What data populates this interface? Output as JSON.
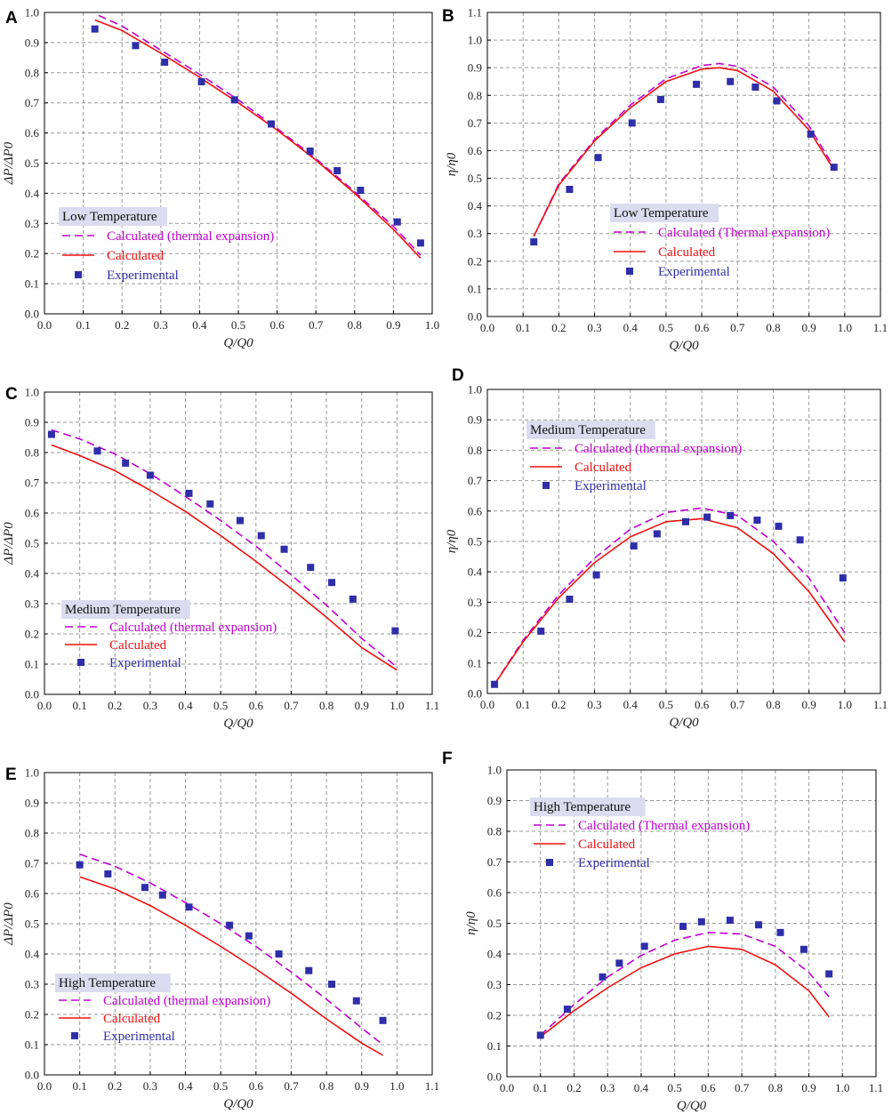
{
  "colors": {
    "thermal": "#c000d0",
    "calculated": "#ee1111",
    "experimental": "#2e2eaa",
    "legend_title_bg": "#dcdcf0",
    "grid": "#999999"
  },
  "chart_data": [
    {
      "panel": "A",
      "type": "line",
      "xlabel": "Q/Q0",
      "ylabel": "ΔP/ΔP0",
      "xlim": [
        0,
        1.0
      ],
      "ylim": [
        0,
        1.0
      ],
      "xticks": [
        "0.0",
        "0.1",
        "0.2",
        "0.3",
        "0.4",
        "0.5",
        "0.6",
        "0.7",
        "0.8",
        "0.9",
        "1.0"
      ],
      "yticks": [
        "0.0",
        "0.1",
        "0.2",
        "0.3",
        "0.4",
        "0.5",
        "0.6",
        "0.7",
        "0.8",
        "0.9",
        "1.0"
      ],
      "legend": {
        "title": "Low Temperature",
        "thermal": "Calculated (thermal expansion)",
        "calculated": "Calculated",
        "experimental": "Experimental"
      },
      "series": [
        {
          "key": "thermal",
          "kind": "dashed",
          "x": [
            0.14,
            0.2,
            0.3,
            0.4,
            0.5,
            0.6,
            0.7,
            0.8,
            0.9,
            0.97
          ],
          "y": [
            0.99,
            0.955,
            0.875,
            0.795,
            0.71,
            0.615,
            0.515,
            0.405,
            0.29,
            0.195
          ]
        },
        {
          "key": "calculated",
          "kind": "solid",
          "x": [
            0.13,
            0.2,
            0.3,
            0.4,
            0.5,
            0.6,
            0.7,
            0.8,
            0.9,
            0.97
          ],
          "y": [
            0.975,
            0.94,
            0.865,
            0.785,
            0.7,
            0.61,
            0.51,
            0.4,
            0.28,
            0.185
          ]
        },
        {
          "key": "experimental",
          "kind": "points",
          "x": [
            0.13,
            0.235,
            0.31,
            0.405,
            0.49,
            0.585,
            0.685,
            0.755,
            0.815,
            0.91,
            0.97
          ],
          "y": [
            0.945,
            0.89,
            0.835,
            0.77,
            0.71,
            0.63,
            0.54,
            0.475,
            0.41,
            0.305,
            0.235
          ]
        }
      ]
    },
    {
      "panel": "B",
      "type": "line",
      "xlabel": "Q/Q0",
      "ylabel": "η/η0",
      "xlim": [
        0,
        1.1
      ],
      "ylim": [
        0,
        1.1
      ],
      "xticks": [
        "0.0",
        "0.1",
        "0.2",
        "0.3",
        "0.4",
        "0.5",
        "0.6",
        "0.7",
        "0.8",
        "0.9",
        "1.0",
        "1.1"
      ],
      "yticks": [
        "0.0",
        "0.1",
        "0.2",
        "0.3",
        "0.4",
        "0.5",
        "0.6",
        "0.7",
        "0.8",
        "0.9",
        "1.0",
        "1.1"
      ],
      "legend": {
        "title": "Low Temperature",
        "thermal": "Calculated (Thermal expansion)",
        "calculated": "Calculated",
        "experimental": "Experimental"
      },
      "series": [
        {
          "key": "thermal",
          "kind": "dashed",
          "x": [
            0.13,
            0.2,
            0.3,
            0.4,
            0.5,
            0.6,
            0.65,
            0.7,
            0.8,
            0.9,
            0.97
          ],
          "y": [
            0.29,
            0.48,
            0.64,
            0.765,
            0.86,
            0.908,
            0.915,
            0.905,
            0.83,
            0.69,
            0.54
          ]
        },
        {
          "key": "calculated",
          "kind": "solid",
          "x": [
            0.13,
            0.2,
            0.3,
            0.4,
            0.5,
            0.6,
            0.65,
            0.7,
            0.8,
            0.9,
            0.97
          ],
          "y": [
            0.29,
            0.475,
            0.635,
            0.755,
            0.85,
            0.895,
            0.9,
            0.89,
            0.815,
            0.675,
            0.53
          ]
        },
        {
          "key": "experimental",
          "kind": "points",
          "x": [
            0.13,
            0.23,
            0.31,
            0.405,
            0.485,
            0.585,
            0.68,
            0.75,
            0.81,
            0.905,
            0.97
          ],
          "y": [
            0.27,
            0.46,
            0.575,
            0.7,
            0.785,
            0.84,
            0.85,
            0.83,
            0.78,
            0.66,
            0.54
          ]
        }
      ]
    },
    {
      "panel": "C",
      "type": "line",
      "xlabel": "Q/Q0",
      "ylabel": "ΔP/ΔP0",
      "xlim": [
        0,
        1.1
      ],
      "ylim": [
        0,
        1.0
      ],
      "xticks": [
        "0.0",
        "0.1",
        "0.2",
        "0.3",
        "0.4",
        "0.5",
        "0.6",
        "0.7",
        "0.8",
        "0.9",
        "1.0",
        "1.1"
      ],
      "yticks": [
        "0.0",
        "0.1",
        "0.2",
        "0.3",
        "0.4",
        "0.5",
        "0.6",
        "0.7",
        "0.8",
        "0.9",
        "1.0"
      ],
      "legend": {
        "title": "Medium Temperature",
        "thermal": "Calculated (thermal expansion)",
        "calculated": "Calculated",
        "experimental": "Experimental"
      },
      "series": [
        {
          "key": "thermal",
          "kind": "dashed",
          "x": [
            0.02,
            0.1,
            0.2,
            0.3,
            0.4,
            0.5,
            0.6,
            0.7,
            0.8,
            0.9,
            1.0
          ],
          "y": [
            0.875,
            0.845,
            0.795,
            0.73,
            0.655,
            0.575,
            0.49,
            0.395,
            0.295,
            0.185,
            0.09
          ]
        },
        {
          "key": "calculated",
          "kind": "solid",
          "x": [
            0.02,
            0.1,
            0.2,
            0.3,
            0.4,
            0.5,
            0.6,
            0.7,
            0.8,
            0.9,
            1.0
          ],
          "y": [
            0.825,
            0.79,
            0.74,
            0.675,
            0.605,
            0.525,
            0.44,
            0.35,
            0.255,
            0.155,
            0.08
          ]
        },
        {
          "key": "experimental",
          "kind": "points",
          "x": [
            0.02,
            0.15,
            0.23,
            0.3,
            0.41,
            0.47,
            0.555,
            0.615,
            0.68,
            0.755,
            0.815,
            0.875,
            0.995
          ],
          "y": [
            0.86,
            0.805,
            0.765,
            0.725,
            0.665,
            0.63,
            0.575,
            0.525,
            0.48,
            0.42,
            0.37,
            0.315,
            0.21
          ]
        }
      ]
    },
    {
      "panel": "D",
      "type": "line",
      "xlabel": "Q/Q0",
      "ylabel": "η/η0",
      "xlim": [
        0,
        1.1
      ],
      "ylim": [
        0,
        1.0
      ],
      "xticks": [
        "0.0",
        "0.1",
        "0.2",
        "0.3",
        "0.4",
        "0.5",
        "0.6",
        "0.7",
        "0.8",
        "0.9",
        "1.0",
        "1.1"
      ],
      "yticks": [
        "0.0",
        "0.1",
        "0.2",
        "0.3",
        "0.4",
        "0.5",
        "0.6",
        "0.7",
        "0.8",
        "0.9",
        "1.0"
      ],
      "legend": {
        "title": "Medium Temperature",
        "thermal": "Calculated (thermal expansion)",
        "calculated": "Calculated",
        "experimental": "Experimental"
      },
      "series": [
        {
          "key": "thermal",
          "kind": "dashed",
          "x": [
            0.02,
            0.1,
            0.2,
            0.3,
            0.4,
            0.5,
            0.6,
            0.7,
            0.8,
            0.9,
            1.0
          ],
          "y": [
            0.03,
            0.175,
            0.325,
            0.445,
            0.54,
            0.595,
            0.61,
            0.585,
            0.5,
            0.38,
            0.2
          ]
        },
        {
          "key": "calculated",
          "kind": "solid",
          "x": [
            0.02,
            0.1,
            0.2,
            0.3,
            0.4,
            0.5,
            0.6,
            0.7,
            0.8,
            0.9,
            1.0
          ],
          "y": [
            0.03,
            0.17,
            0.315,
            0.43,
            0.515,
            0.565,
            0.575,
            0.545,
            0.46,
            0.335,
            0.17
          ]
        },
        {
          "key": "experimental",
          "kind": "points",
          "x": [
            0.02,
            0.15,
            0.23,
            0.305,
            0.41,
            0.475,
            0.555,
            0.615,
            0.68,
            0.755,
            0.815,
            0.875,
            0.995
          ],
          "y": [
            0.03,
            0.205,
            0.31,
            0.39,
            0.485,
            0.525,
            0.565,
            0.58,
            0.585,
            0.57,
            0.55,
            0.505,
            0.38
          ]
        }
      ]
    },
    {
      "panel": "E",
      "type": "line",
      "xlabel": "Q/Q0",
      "ylabel": "ΔP/ΔP0",
      "xlim": [
        0,
        1.1
      ],
      "ylim": [
        0,
        1.0
      ],
      "xticks": [
        "0.0",
        "0.1",
        "0.2",
        "0.3",
        "0.4",
        "0.5",
        "0.6",
        "0.7",
        "0.8",
        "0.9",
        "1.0",
        "1.1"
      ],
      "yticks": [
        "0.0",
        "0.1",
        "0.2",
        "0.3",
        "0.4",
        "0.5",
        "0.6",
        "0.7",
        "0.8",
        "0.9",
        "1.0"
      ],
      "legend": {
        "title": "High Temperature",
        "thermal": "Calculated (thermal expansion)",
        "calculated": "Calculated",
        "experimental": "Experimental"
      },
      "series": [
        {
          "key": "thermal",
          "kind": "dashed",
          "x": [
            0.1,
            0.2,
            0.3,
            0.4,
            0.5,
            0.6,
            0.7,
            0.8,
            0.9,
            0.96
          ],
          "y": [
            0.73,
            0.69,
            0.635,
            0.57,
            0.5,
            0.425,
            0.34,
            0.25,
            0.155,
            0.1
          ]
        },
        {
          "key": "calculated",
          "kind": "solid",
          "x": [
            0.1,
            0.2,
            0.3,
            0.4,
            0.5,
            0.6,
            0.7,
            0.8,
            0.9,
            0.96
          ],
          "y": [
            0.655,
            0.615,
            0.56,
            0.495,
            0.425,
            0.35,
            0.27,
            0.185,
            0.105,
            0.065
          ]
        },
        {
          "key": "experimental",
          "kind": "points",
          "x": [
            0.1,
            0.18,
            0.285,
            0.335,
            0.41,
            0.525,
            0.58,
            0.665,
            0.75,
            0.815,
            0.885,
            0.96
          ],
          "y": [
            0.695,
            0.665,
            0.62,
            0.595,
            0.555,
            0.495,
            0.46,
            0.4,
            0.345,
            0.3,
            0.245,
            0.18
          ]
        }
      ]
    },
    {
      "panel": "F",
      "type": "line",
      "xlabel": "Q/Q0",
      "ylabel": "η/η0",
      "xlim": [
        0,
        1.1
      ],
      "ylim": [
        0,
        1.0
      ],
      "xticks": [
        "0.0",
        "0.1",
        "0.2",
        "0.3",
        "0.4",
        "0.5",
        "0.6",
        "0.7",
        "0.8",
        "0.9",
        "1.0",
        "1.1"
      ],
      "yticks": [
        "0.0",
        "0.1",
        "0.2",
        "0.3",
        "0.4",
        "0.5",
        "0.6",
        "0.7",
        "0.8",
        "0.9",
        "1.0"
      ],
      "legend": {
        "title": "High Temperature",
        "thermal": "Calculated (Thermal expansion)",
        "calculated": "Calculated",
        "experimental": "Experimental"
      },
      "series": [
        {
          "key": "thermal",
          "kind": "dashed",
          "x": [
            0.1,
            0.2,
            0.3,
            0.4,
            0.5,
            0.6,
            0.7,
            0.8,
            0.9,
            0.96
          ],
          "y": [
            0.135,
            0.235,
            0.325,
            0.395,
            0.445,
            0.47,
            0.465,
            0.425,
            0.34,
            0.26
          ]
        },
        {
          "key": "calculated",
          "kind": "solid",
          "x": [
            0.1,
            0.2,
            0.3,
            0.4,
            0.5,
            0.6,
            0.7,
            0.8,
            0.9,
            0.96
          ],
          "y": [
            0.13,
            0.215,
            0.29,
            0.355,
            0.4,
            0.425,
            0.415,
            0.365,
            0.28,
            0.195
          ]
        },
        {
          "key": "experimental",
          "kind": "points",
          "x": [
            0.1,
            0.18,
            0.285,
            0.335,
            0.41,
            0.525,
            0.58,
            0.665,
            0.75,
            0.815,
            0.885,
            0.96
          ],
          "y": [
            0.135,
            0.22,
            0.325,
            0.37,
            0.425,
            0.49,
            0.505,
            0.51,
            0.495,
            0.47,
            0.415,
            0.335
          ]
        }
      ]
    }
  ]
}
